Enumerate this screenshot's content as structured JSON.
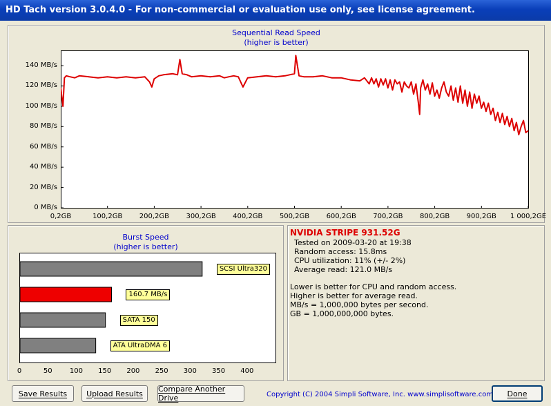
{
  "window": {
    "title": "HD Tach version 3.0.4.0  - For non-commercial or evaluation use only, see license agreement."
  },
  "colors": {
    "read_line": "#DD0000",
    "highlight_bar": "#EE0000",
    "bar": "#808080",
    "label_bg": "#FFFF99",
    "title_text": "#0000CC"
  },
  "read_chart": {
    "title_line1": "Sequential Read Speed",
    "title_line2": "(higher is better)",
    "y_ticks": [
      "0 MB/s",
      "20 MB/s",
      "40 MB/s",
      "60 MB/s",
      "80 MB/s",
      "100 MB/s",
      "120 MB/s",
      "140 MB/s"
    ],
    "x_ticks": [
      "0,2GB",
      "100,2GB",
      "200,2GB",
      "300,2GB",
      "400,2GB",
      "500,2GB",
      "600,2GB",
      "700,2GB",
      "800,2GB",
      "900,2GB",
      "1 000,2GE"
    ]
  },
  "chart_data": [
    {
      "type": "line",
      "title": "Sequential Read Speed",
      "subtitle": "(higher is better)",
      "xlabel": "",
      "ylabel": "",
      "x_unit": "GB",
      "y_unit": "MB/s",
      "ylim": [
        0,
        155
      ],
      "xlim": [
        0.2,
        1000.2
      ],
      "grid": false,
      "series": [
        {
          "x": [
            0.2,
            5,
            8,
            12,
            20,
            30,
            40,
            60,
            80,
            100,
            120,
            140,
            160,
            180,
            190,
            195,
            200,
            210,
            220,
            240,
            250,
            255,
            260,
            270,
            280,
            300,
            320,
            340,
            350,
            360,
            370,
            380,
            390,
            400,
            420,
            440,
            460,
            480,
            490,
            500,
            503,
            510,
            520,
            540,
            560,
            580,
            600,
            620,
            640,
            650,
            660,
            665,
            670,
            675,
            680,
            685,
            690,
            695,
            700,
            705,
            710,
            715,
            720,
            725,
            730,
            735,
            740,
            745,
            750,
            755,
            760,
            765,
            768,
            770,
            775,
            780,
            785,
            790,
            795,
            800,
            805,
            810,
            815,
            820,
            825,
            830,
            835,
            840,
            845,
            850,
            855,
            860,
            865,
            870,
            875,
            880,
            885,
            890,
            895,
            900,
            905,
            910,
            915,
            920,
            925,
            930,
            935,
            940,
            945,
            950,
            955,
            960,
            965,
            970,
            975,
            980,
            985,
            990,
            995,
            1000.2
          ],
          "y": [
            118,
            100,
            128,
            130,
            129,
            128,
            130,
            129,
            128,
            129,
            128,
            129,
            128,
            129,
            124,
            119,
            127,
            130,
            131,
            132,
            131,
            146,
            132,
            131,
            129,
            130,
            129,
            130,
            128,
            129,
            130,
            129,
            119,
            128,
            129,
            130,
            129,
            130,
            131,
            132,
            150,
            130,
            129,
            129,
            130,
            128,
            128,
            126,
            125,
            128,
            122,
            128,
            122,
            127,
            119,
            127,
            121,
            127,
            118,
            126,
            116,
            126,
            122,
            124,
            114,
            124,
            120,
            118,
            124,
            112,
            122,
            104,
            92,
            118,
            126,
            116,
            122,
            112,
            123,
            110,
            116,
            108,
            118,
            124,
            114,
            110,
            120,
            106,
            118,
            104,
            120,
            103,
            116,
            100,
            114,
            98,
            112,
            103,
            110,
            98,
            104,
            95,
            103,
            92,
            98,
            86,
            94,
            84,
            93,
            82,
            90,
            80,
            88,
            76,
            84,
            72,
            80,
            86,
            74,
            76
          ]
        }
      ]
    },
    {
      "type": "bar",
      "title": "Burst Speed",
      "subtitle": "(higher is better)",
      "orientation": "horizontal",
      "xlim": [
        0,
        450
      ],
      "x_ticks": [
        "0",
        "50",
        "100",
        "150",
        "200",
        "250",
        "300",
        "350",
        "400"
      ],
      "categories": [
        "SCSI Ultra320",
        "160.7 MB/s",
        "SATA 150",
        "ATA UltraDMA 6"
      ],
      "values": [
        320,
        160.7,
        150,
        133
      ],
      "highlight_index": 1
    }
  ],
  "burst_chart": {
    "title_line1": "Burst Speed",
    "title_line2": "(higher is better)",
    "labels": [
      "SCSI Ultra320",
      "160.7 MB/s",
      "SATA 150",
      "ATA UltraDMA 6"
    ],
    "x_ticks": [
      "0",
      "50",
      "100",
      "150",
      "200",
      "250",
      "300",
      "350",
      "400"
    ]
  },
  "info": {
    "drive_name": "NVIDIA  STRIPE  931.52G",
    "tested_on": "Tested on 2009-03-20 at 19:38",
    "random_access": "Random access: 15.8ms",
    "cpu": "CPU utilization: 11% (+/- 2%)",
    "average_read": "Average read: 121.0 MB/s",
    "note1": "Lower is better for CPU and random access.",
    "note2": "Higher is better for average read.",
    "note3": "MB/s = 1,000,000 bytes per second.",
    "note4": "GB = 1,000,000,000 bytes."
  },
  "buttons": {
    "save": "Save Results",
    "upload": "Upload Results",
    "compare": "Compare Another Drive",
    "done": "Done"
  },
  "copyright": "Copyright (C) 2004 Simpli Software, Inc. www.simplisoftware.com"
}
